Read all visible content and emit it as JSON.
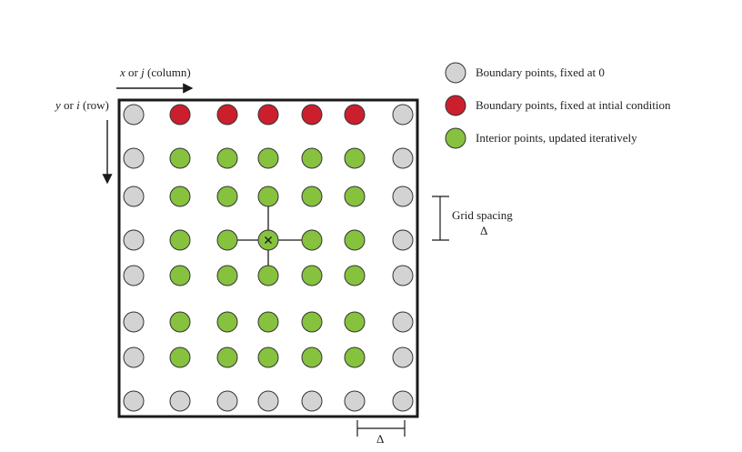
{
  "axes": {
    "x_label": {
      "var": "x",
      "mid": " or ",
      "idx": "j",
      "rest": " (column)"
    },
    "y_label": {
      "var": "y",
      "mid": " or ",
      "idx": "i",
      "rest": " (row)"
    }
  },
  "grid": {
    "rows": 8,
    "cols": 7,
    "states": [
      [
        "boundary_zero",
        "boundary_ic",
        "boundary_ic",
        "boundary_ic",
        "boundary_ic",
        "boundary_ic",
        "boundary_zero"
      ],
      [
        "boundary_zero",
        "interior",
        "interior",
        "interior",
        "interior",
        "interior",
        "boundary_zero"
      ],
      [
        "boundary_zero",
        "interior",
        "interior",
        "interior",
        "interior",
        "interior",
        "boundary_zero"
      ],
      [
        "boundary_zero",
        "interior",
        "interior",
        "interior",
        "interior",
        "interior",
        "boundary_zero"
      ],
      [
        "boundary_zero",
        "interior",
        "interior",
        "interior",
        "interior",
        "interior",
        "boundary_zero"
      ],
      [
        "boundary_zero",
        "interior",
        "interior",
        "interior",
        "interior",
        "interior",
        "boundary_zero"
      ],
      [
        "boundary_zero",
        "interior",
        "interior",
        "interior",
        "interior",
        "interior",
        "boundary_zero"
      ],
      [
        "boundary_zero",
        "boundary_zero",
        "boundary_zero",
        "boundary_zero",
        "boundary_zero",
        "boundary_zero",
        "boundary_zero"
      ]
    ],
    "stencil_center": {
      "row": 3,
      "col": 3
    }
  },
  "colors": {
    "boundary_zero": "#d3d3d3",
    "boundary_ic": "#cc1f2d",
    "interior": "#86c23e",
    "stroke": "#333333",
    "frame": "#1a1a1a"
  },
  "legend": [
    {
      "key": "boundary_zero",
      "label": "Boundary points, fixed at 0"
    },
    {
      "key": "boundary_ic",
      "label": "Boundary points, fixed at intial condition"
    },
    {
      "key": "interior",
      "label": "Interior points, updated iteratively"
    }
  ],
  "annotations": {
    "grid_spacing_label": "Grid spacing",
    "delta_symbol": "Δ"
  }
}
